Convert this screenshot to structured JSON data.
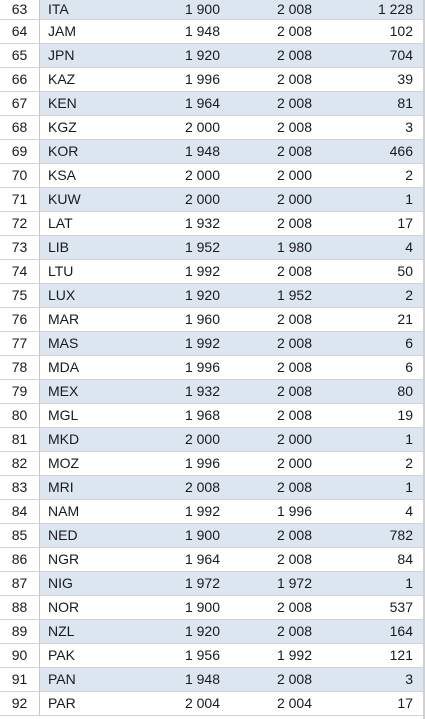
{
  "table": {
    "rows": [
      {
        "num": "63",
        "code": "ITA",
        "first": "1 900",
        "last": "2 008",
        "count": "1 228"
      },
      {
        "num": "64",
        "code": "JAM",
        "first": "1 948",
        "last": "2 008",
        "count": "102"
      },
      {
        "num": "65",
        "code": "JPN",
        "first": "1 920",
        "last": "2 008",
        "count": "704"
      },
      {
        "num": "66",
        "code": "KAZ",
        "first": "1 996",
        "last": "2 008",
        "count": "39"
      },
      {
        "num": "67",
        "code": "KEN",
        "first": "1 964",
        "last": "2 008",
        "count": "81"
      },
      {
        "num": "68",
        "code": "KGZ",
        "first": "2 000",
        "last": "2 008",
        "count": "3"
      },
      {
        "num": "69",
        "code": "KOR",
        "first": "1 948",
        "last": "2 008",
        "count": "466"
      },
      {
        "num": "70",
        "code": "KSA",
        "first": "2 000",
        "last": "2 000",
        "count": "2"
      },
      {
        "num": "71",
        "code": "KUW",
        "first": "2 000",
        "last": "2 000",
        "count": "1"
      },
      {
        "num": "72",
        "code": "LAT",
        "first": "1 932",
        "last": "2 008",
        "count": "17"
      },
      {
        "num": "73",
        "code": "LIB",
        "first": "1 952",
        "last": "1 980",
        "count": "4"
      },
      {
        "num": "74",
        "code": "LTU",
        "first": "1 992",
        "last": "2 008",
        "count": "50"
      },
      {
        "num": "75",
        "code": "LUX",
        "first": "1 920",
        "last": "1 952",
        "count": "2"
      },
      {
        "num": "76",
        "code": "MAR",
        "first": "1 960",
        "last": "2 008",
        "count": "21"
      },
      {
        "num": "77",
        "code": "MAS",
        "first": "1 992",
        "last": "2 008",
        "count": "6"
      },
      {
        "num": "78",
        "code": "MDA",
        "first": "1 996",
        "last": "2 008",
        "count": "6"
      },
      {
        "num": "79",
        "code": "MEX",
        "first": "1 932",
        "last": "2 008",
        "count": "80"
      },
      {
        "num": "80",
        "code": "MGL",
        "first": "1 968",
        "last": "2 008",
        "count": "19"
      },
      {
        "num": "81",
        "code": "MKD",
        "first": "2 000",
        "last": "2 000",
        "count": "1"
      },
      {
        "num": "82",
        "code": "MOZ",
        "first": "1 996",
        "last": "2 000",
        "count": "2"
      },
      {
        "num": "83",
        "code": "MRI",
        "first": "2 008",
        "last": "2 008",
        "count": "1"
      },
      {
        "num": "84",
        "code": "NAM",
        "first": "1 992",
        "last": "1 996",
        "count": "4"
      },
      {
        "num": "85",
        "code": "NED",
        "first": "1 900",
        "last": "2 008",
        "count": "782"
      },
      {
        "num": "86",
        "code": "NGR",
        "first": "1 964",
        "last": "2 008",
        "count": "84"
      },
      {
        "num": "87",
        "code": "NIG",
        "first": "1 972",
        "last": "1 972",
        "count": "1"
      },
      {
        "num": "88",
        "code": "NOR",
        "first": "1 900",
        "last": "2 008",
        "count": "537"
      },
      {
        "num": "89",
        "code": "NZL",
        "first": "1 920",
        "last": "2 008",
        "count": "164"
      },
      {
        "num": "90",
        "code": "PAK",
        "first": "1 956",
        "last": "1 992",
        "count": "121"
      },
      {
        "num": "91",
        "code": "PAN",
        "first": "1 948",
        "last": "2 008",
        "count": "3"
      },
      {
        "num": "92",
        "code": "PAR",
        "first": "2 004",
        "last": "2 004",
        "count": "17"
      }
    ]
  },
  "colors": {
    "band": "#dce6f1",
    "grid": "#d4d4d4"
  }
}
